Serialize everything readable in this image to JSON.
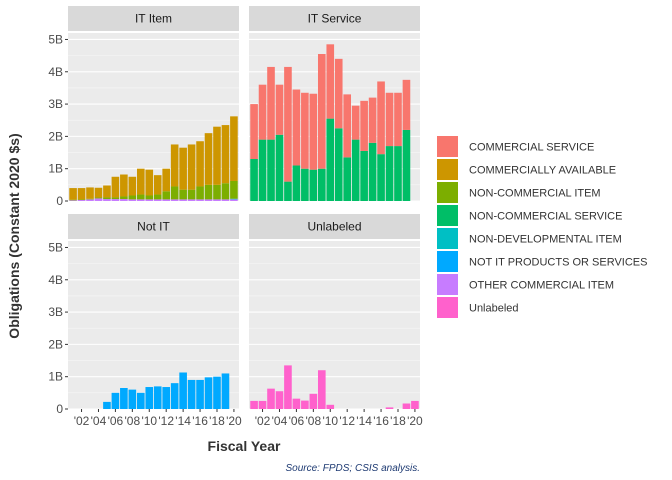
{
  "chart_data": {
    "type": "bar",
    "stacked": true,
    "xlabel": "Fiscal Year",
    "ylabel": "Obligations (Constant 2020 $s)",
    "caption": "Source: FPDS; CSIS analysis.",
    "ylim": [
      0,
      5.2
    ],
    "y_ticks": [
      0,
      1,
      2,
      3,
      4,
      5
    ],
    "y_tick_labels": [
      "0",
      "1B",
      "2B",
      "3B",
      "4B",
      "5B"
    ],
    "x_ticks": [
      2002,
      2004,
      2006,
      2008,
      2010,
      2012,
      2014,
      2016,
      2018,
      2020
    ],
    "x_tick_labels": [
      "'02",
      "'04",
      "'06",
      "'08",
      "'10",
      "'12",
      "'14",
      "'16",
      "'18",
      "'20"
    ],
    "years": [
      2001,
      2002,
      2003,
      2004,
      2005,
      2006,
      2007,
      2008,
      2009,
      2010,
      2011,
      2012,
      2013,
      2014,
      2015,
      2016,
      2017,
      2018,
      2019,
      2020
    ],
    "grid": true,
    "legend_position": "right",
    "categories": [
      {
        "name": "COMMERCIAL SERVICE",
        "color": "#F8766D"
      },
      {
        "name": "COMMERCIALLY AVAILABLE",
        "color": "#CD9600"
      },
      {
        "name": "NON-COMMERCIAL ITEM",
        "color": "#7CAE00"
      },
      {
        "name": "NON-COMMERCIAL SERVICE",
        "color": "#00BE67"
      },
      {
        "name": "NON-DEVELOPMENTAL ITEM",
        "color": "#00BFC4"
      },
      {
        "name": "NOT IT PRODUCTS OR SERVICES",
        "color": "#00A9FF"
      },
      {
        "name": "OTHER COMMERCIAL ITEM",
        "color": "#C77CFF"
      },
      {
        "name": "Unlabeled",
        "color": "#FF61CC"
      }
    ],
    "panels": [
      {
        "title": "IT Item",
        "series": [
          {
            "name": "OTHER COMMERCIAL ITEM",
            "values": [
              0.02,
              0.03,
              0.05,
              0.08,
              0.06,
              0.06,
              0.06,
              0.05,
              0.05,
              0.05,
              0.05,
              0.05,
              0.05,
              0.05,
              0.05,
              0.05,
              0.05,
              0.05,
              0.05,
              0.05
            ]
          },
          {
            "name": "NON-DEVELOPMENTAL ITEM",
            "values": [
              0,
              0,
              0,
              0,
              0,
              0,
              0,
              0,
              0,
              0,
              0,
              0,
              0,
              0,
              0,
              0,
              0,
              0,
              0,
              0.02
            ]
          },
          {
            "name": "NON-COMMERCIAL ITEM",
            "values": [
              0.02,
              0.02,
              0.02,
              0.03,
              0.05,
              0.05,
              0.08,
              0.12,
              0.15,
              0.12,
              0.15,
              0.25,
              0.4,
              0.3,
              0.3,
              0.4,
              0.45,
              0.45,
              0.5,
              0.55
            ]
          },
          {
            "name": "COMMERCIALLY AVAILABLE",
            "values": [
              0.36,
              0.35,
              0.35,
              0.3,
              0.37,
              0.64,
              0.68,
              0.58,
              0.8,
              0.8,
              0.6,
              0.7,
              1.3,
              1.3,
              1.4,
              1.4,
              1.6,
              1.8,
              1.8,
              2.0
            ]
          }
        ]
      },
      {
        "title": "IT Service",
        "series": [
          {
            "name": "NON-COMMERCIAL SERVICE",
            "values": [
              1.3,
              1.9,
              1.9,
              2.05,
              0.6,
              1.1,
              1.0,
              0.97,
              1.0,
              2.55,
              2.25,
              1.35,
              1.9,
              1.55,
              1.8,
              1.45,
              1.7,
              1.7,
              2.2,
              0
            ]
          },
          {
            "name": "COMMERCIAL SERVICE",
            "values": [
              1.7,
              1.7,
              2.25,
              1.55,
              3.55,
              2.35,
              2.35,
              2.35,
              3.55,
              2.3,
              2.15,
              1.95,
              1.05,
              1.55,
              1.4,
              2.25,
              1.65,
              1.65,
              1.55,
              0
            ]
          }
        ]
      },
      {
        "title": "Not IT",
        "series": [
          {
            "name": "NOT IT PRODUCTS OR SERVICES",
            "values": [
              0,
              0,
              0,
              0,
              0.22,
              0.5,
              0.65,
              0.6,
              0.5,
              0.68,
              0.7,
              0.68,
              0.8,
              1.13,
              0.9,
              0.9,
              0.98,
              1.0,
              1.1,
              0
            ]
          }
        ]
      },
      {
        "title": "Unlabeled",
        "series": [
          {
            "name": "Unlabeled",
            "values": [
              0.25,
              0.25,
              0.63,
              0.55,
              1.35,
              0.32,
              0.26,
              0.47,
              1.2,
              0.13,
              0,
              0,
              0,
              0,
              0,
              0,
              0.05,
              0,
              0.17,
              0.25
            ]
          }
        ]
      }
    ]
  }
}
